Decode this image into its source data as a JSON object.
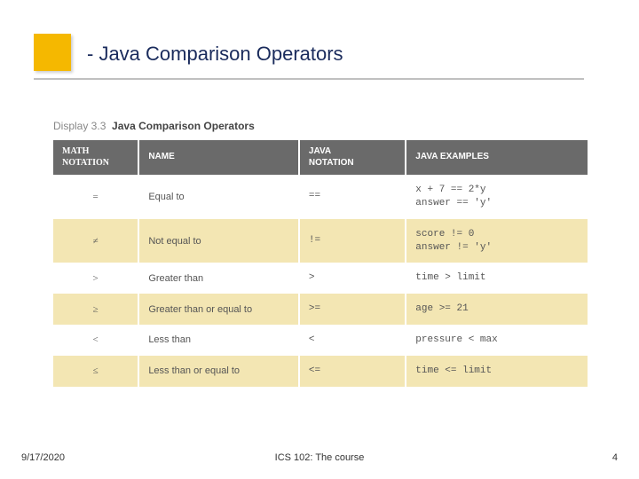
{
  "title": "- Java Comparison Operators",
  "display_caption_prefix": "Display 3.3",
  "display_caption_title": "Java Comparison Operators",
  "colors": {
    "logo_bg": "#f5b800",
    "title_color": "#1a2b5c",
    "underline": "#c0c0c0",
    "header_bg": "#6a6a6a",
    "header_text": "#ffffff",
    "row_white": "#ffffff",
    "row_yellow": "#f3e6b3",
    "body_text": "#555555",
    "caption_muted": "#888888",
    "caption_bold": "#444444"
  },
  "fonts": {
    "title_fontsize": 22,
    "header_fontsize": 10,
    "body_fontsize": 11,
    "mono_family": "Courier New",
    "title_family": "Verdana"
  },
  "table": {
    "columns": [
      {
        "key": "math",
        "label": "MATH\nNOTATION",
        "width_pct": 16,
        "align": "center"
      },
      {
        "key": "name",
        "label": "NAME",
        "width_pct": 30,
        "align": "left"
      },
      {
        "key": "java",
        "label": "JAVA\nNOTATION",
        "width_pct": 20,
        "align": "left"
      },
      {
        "key": "ex",
        "label": "JAVA EXAMPLES",
        "width_pct": 34,
        "align": "left"
      }
    ],
    "rows": [
      {
        "bg": "white",
        "math": "=",
        "name": "Equal to",
        "java": "==",
        "ex": "x + 7 == 2*y\nanswer == 'y'"
      },
      {
        "bg": "yellow",
        "math": "≠",
        "name": "Not equal to",
        "java": "!=",
        "ex": "score != 0\nanswer != 'y'"
      },
      {
        "bg": "white",
        "math": ">",
        "name": "Greater than",
        "java": ">",
        "ex": "time > limit"
      },
      {
        "bg": "yellow",
        "math": "≥",
        "name": "Greater than or equal to",
        "java": ">=",
        "ex": "age >= 21"
      },
      {
        "bg": "white",
        "math": "<",
        "name": "Less than",
        "java": "<",
        "ex": "pressure < max"
      },
      {
        "bg": "yellow",
        "math": "≤",
        "name": "Less than or equal to",
        "java": "<=",
        "ex": "time <= limit"
      }
    ]
  },
  "footer": {
    "date": "9/17/2020",
    "center": "ICS 102: The course",
    "page": "4"
  }
}
